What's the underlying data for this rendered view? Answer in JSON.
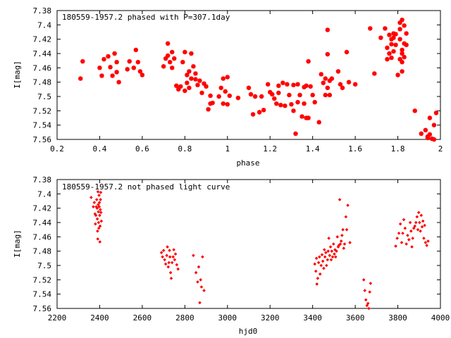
{
  "chart_data": [
    {
      "type": "scatter",
      "title": "180559-1957.2 phased with P=307.1day",
      "xlabel": "phase",
      "ylabel": "I[mag]",
      "xlim": [
        0.2,
        2.0
      ],
      "ylim": [
        7.38,
        7.56
      ],
      "y_inverted": true,
      "grid": false,
      "marker": "asterisk",
      "color": "#ff0000",
      "xticks": [
        "0.2",
        "0.4",
        "0.6",
        "0.8",
        "1",
        "1.2",
        "1.4",
        "1.6",
        "1.8",
        "2"
      ],
      "yticks": [
        "7.38",
        "7.4",
        "7.42",
        "7.44",
        "7.46",
        "7.48",
        "7.5",
        "7.52",
        "7.54",
        "7.56"
      ],
      "points": [
        [
          0.31,
          7.475
        ],
        [
          0.32,
          7.451
        ],
        [
          0.4,
          7.46
        ],
        [
          0.41,
          7.471
        ],
        [
          0.42,
          7.448
        ],
        [
          0.44,
          7.444
        ],
        [
          0.45,
          7.459
        ],
        [
          0.46,
          7.471
        ],
        [
          0.47,
          7.44
        ],
        [
          0.48,
          7.452
        ],
        [
          0.48,
          7.466
        ],
        [
          0.49,
          7.48
        ],
        [
          0.53,
          7.462
        ],
        [
          0.54,
          7.451
        ],
        [
          0.56,
          7.46
        ],
        [
          0.57,
          7.435
        ],
        [
          0.58,
          7.452
        ],
        [
          0.59,
          7.465
        ],
        [
          0.6,
          7.47
        ],
        [
          0.7,
          7.458
        ],
        [
          0.71,
          7.447
        ],
        [
          0.72,
          7.443
        ],
        [
          0.72,
          7.426
        ],
        [
          0.73,
          7.452
        ],
        [
          0.74,
          7.438
        ],
        [
          0.74,
          7.46
        ],
        [
          0.75,
          7.447
        ],
        [
          0.76,
          7.485
        ],
        [
          0.77,
          7.49
        ],
        [
          0.78,
          7.486
        ],
        [
          0.79,
          7.452
        ],
        [
          0.8,
          7.492
        ],
        [
          0.8,
          7.438
        ],
        [
          0.81,
          7.47
        ],
        [
          0.81,
          7.481
        ],
        [
          0.82,
          7.488
        ],
        [
          0.82,
          7.465
        ],
        [
          0.83,
          7.44
        ],
        [
          0.83,
          7.475
        ],
        [
          0.84,
          7.458
        ],
        [
          0.85,
          7.476
        ],
        [
          0.85,
          7.468
        ],
        [
          0.86,
          7.484
        ],
        [
          0.87,
          7.478
        ],
        [
          0.88,
          7.495
        ],
        [
          0.89,
          7.482
        ],
        [
          0.9,
          7.486
        ],
        [
          0.91,
          7.518
        ],
        [
          0.92,
          7.499
        ],
        [
          0.92,
          7.51
        ],
        [
          0.93,
          7.509
        ],
        [
          0.96,
          7.5
        ],
        [
          0.97,
          7.488
        ],
        [
          0.98,
          7.51
        ],
        [
          0.98,
          7.475
        ],
        [
          0.99,
          7.493
        ],
        [
          1.0,
          7.511
        ],
        [
          1.0,
          7.473
        ],
        [
          1.01,
          7.499
        ],
        [
          1.05,
          7.502
        ],
        [
          1.1,
          7.488
        ],
        [
          1.11,
          7.497
        ],
        [
          1.12,
          7.525
        ],
        [
          1.13,
          7.5
        ],
        [
          1.15,
          7.522
        ],
        [
          1.16,
          7.5
        ],
        [
          1.17,
          7.519
        ],
        [
          1.19,
          7.483
        ],
        [
          1.2,
          7.494
        ],
        [
          1.21,
          7.497
        ],
        [
          1.22,
          7.503
        ],
        [
          1.23,
          7.51
        ],
        [
          1.24,
          7.485
        ],
        [
          1.24,
          7.495
        ],
        [
          1.25,
          7.512
        ],
        [
          1.26,
          7.481
        ],
        [
          1.27,
          7.513
        ],
        [
          1.28,
          7.483
        ],
        [
          1.29,
          7.498
        ],
        [
          1.3,
          7.511
        ],
        [
          1.31,
          7.484
        ],
        [
          1.31,
          7.52
        ],
        [
          1.32,
          7.552
        ],
        [
          1.33,
          7.483
        ],
        [
          1.33,
          7.508
        ],
        [
          1.34,
          7.498
        ],
        [
          1.35,
          7.528
        ],
        [
          1.36,
          7.487
        ],
        [
          1.36,
          7.51
        ],
        [
          1.37,
          7.53
        ],
        [
          1.37,
          7.485
        ],
        [
          1.38,
          7.53
        ],
        [
          1.38,
          7.451
        ],
        [
          1.39,
          7.486
        ],
        [
          1.4,
          7.498
        ],
        [
          1.41,
          7.508
        ],
        [
          1.43,
          7.536
        ],
        [
          1.44,
          7.469
        ],
        [
          1.45,
          7.481
        ],
        [
          1.46,
          7.498
        ],
        [
          1.46,
          7.475
        ],
        [
          1.47,
          7.488
        ],
        [
          1.47,
          7.441
        ],
        [
          1.47,
          7.407
        ],
        [
          1.48,
          7.498
        ],
        [
          1.48,
          7.478
        ],
        [
          1.49,
          7.475
        ],
        [
          1.52,
          7.465
        ],
        [
          1.53,
          7.483
        ],
        [
          1.54,
          7.488
        ],
        [
          1.56,
          7.438
        ],
        [
          1.57,
          7.48
        ],
        [
          1.6,
          7.483
        ],
        [
          1.67,
          7.405
        ],
        [
          1.69,
          7.468
        ],
        [
          1.72,
          7.418
        ],
        [
          1.74,
          7.405
        ],
        [
          1.75,
          7.432
        ],
        [
          1.75,
          7.448
        ],
        [
          1.76,
          7.414
        ],
        [
          1.76,
          7.44
        ],
        [
          1.77,
          7.42
        ],
        [
          1.77,
          7.427
        ],
        [
          1.77,
          7.446
        ],
        [
          1.78,
          7.412
        ],
        [
          1.78,
          7.437
        ],
        [
          1.78,
          7.418
        ],
        [
          1.79,
          7.413
        ],
        [
          1.79,
          7.428
        ],
        [
          1.8,
          7.47
        ],
        [
          1.81,
          7.406
        ],
        [
          1.81,
          7.397
        ],
        [
          1.81,
          7.42
        ],
        [
          1.81,
          7.448
        ],
        [
          1.82,
          7.393
        ],
        [
          1.82,
          7.435
        ],
        [
          1.82,
          7.44
        ],
        [
          1.82,
          7.452
        ],
        [
          1.82,
          7.465
        ],
        [
          1.83,
          7.401
        ],
        [
          1.83,
          7.426
        ],
        [
          1.83,
          7.445
        ],
        [
          1.84,
          7.412
        ],
        [
          1.84,
          7.428
        ],
        [
          1.88,
          7.52
        ],
        [
          1.91,
          7.552
        ],
        [
          1.93,
          7.547
        ],
        [
          1.94,
          7.558
        ],
        [
          1.94,
          7.556
        ],
        [
          1.95,
          7.53
        ],
        [
          1.95,
          7.553
        ],
        [
          1.96,
          7.559
        ],
        [
          1.97,
          7.56
        ],
        [
          1.97,
          7.54
        ],
        [
          1.98,
          7.523
        ]
      ]
    },
    {
      "type": "scatter",
      "title": "180559-1957.2 not phased light curve",
      "xlabel": "hjd0",
      "ylabel": "I[mag]",
      "xlim": [
        2200,
        4000
      ],
      "ylim": [
        7.38,
        7.56
      ],
      "y_inverted": true,
      "grid": false,
      "marker": "diamond",
      "color": "#ff0000",
      "xticks": [
        "2200",
        "2400",
        "2600",
        "2800",
        "3000",
        "3200",
        "3400",
        "3600",
        "3800",
        "4000"
      ],
      "yticks": [
        "7.38",
        "7.4",
        "7.42",
        "7.44",
        "7.46",
        "7.48",
        "7.5",
        "7.52",
        "7.54",
        "7.56"
      ],
      "points": [
        [
          2360,
          7.405
        ],
        [
          2370,
          7.418
        ],
        [
          2375,
          7.412
        ],
        [
          2378,
          7.428
        ],
        [
          2380,
          7.442
        ],
        [
          2382,
          7.43
        ],
        [
          2384,
          7.418
        ],
        [
          2386,
          7.408
        ],
        [
          2388,
          7.42
        ],
        [
          2389,
          7.435
        ],
        [
          2390,
          7.452
        ],
        [
          2391,
          7.463
        ],
        [
          2392,
          7.397
        ],
        [
          2393,
          7.415
        ],
        [
          2394,
          7.425
        ],
        [
          2395,
          7.44
        ],
        [
          2396,
          7.448
        ],
        [
          2397,
          7.402
        ],
        [
          2398,
          7.418
        ],
        [
          2399,
          7.412
        ],
        [
          2400,
          7.43
        ],
        [
          2401,
          7.467
        ],
        [
          2402,
          7.445
        ],
        [
          2403,
          7.422
        ],
        [
          2404,
          7.408
        ],
        [
          2405,
          7.398
        ],
        [
          2406,
          7.426
        ],
        [
          2408,
          7.438
        ],
        [
          2690,
          7.482
        ],
        [
          2695,
          7.488
        ],
        [
          2700,
          7.479
        ],
        [
          2705,
          7.492
        ],
        [
          2710,
          7.498
        ],
        [
          2715,
          7.486
        ],
        [
          2718,
          7.474
        ],
        [
          2722,
          7.502
        ],
        [
          2725,
          7.496
        ],
        [
          2728,
          7.479
        ],
        [
          2730,
          7.488
        ],
        [
          2733,
          7.51
        ],
        [
          2736,
          7.518
        ],
        [
          2740,
          7.496
        ],
        [
          2745,
          7.488
        ],
        [
          2748,
          7.478
        ],
        [
          2752,
          7.492
        ],
        [
          2756,
          7.484
        ],
        [
          2762,
          7.499
        ],
        [
          2768,
          7.505
        ],
        [
          2840,
          7.486
        ],
        [
          2852,
          7.51
        ],
        [
          2860,
          7.523
        ],
        [
          2865,
          7.502
        ],
        [
          2870,
          7.552
        ],
        [
          2874,
          7.52
        ],
        [
          2878,
          7.53
        ],
        [
          2883,
          7.488
        ],
        [
          2890,
          7.535
        ],
        [
          3410,
          7.498
        ],
        [
          3415,
          7.508
        ],
        [
          3418,
          7.49
        ],
        [
          3420,
          7.526
        ],
        [
          3424,
          7.518
        ],
        [
          3428,
          7.496
        ],
        [
          3432,
          7.488
        ],
        [
          3435,
          7.512
        ],
        [
          3440,
          7.5
        ],
        [
          3444,
          7.485
        ],
        [
          3448,
          7.494
        ],
        [
          3452,
          7.504
        ],
        [
          3455,
          7.478
        ],
        [
          3458,
          7.488
        ],
        [
          3462,
          7.482
        ],
        [
          3465,
          7.5
        ],
        [
          3470,
          7.492
        ],
        [
          3473,
          7.48
        ],
        [
          3476,
          7.462
        ],
        [
          3480,
          7.486
        ],
        [
          3484,
          7.474
        ],
        [
          3487,
          7.492
        ],
        [
          3490,
          7.48
        ],
        [
          3494,
          7.488
        ],
        [
          3498,
          7.47
        ],
        [
          3502,
          7.484
        ],
        [
          3505,
          7.478
        ],
        [
          3508,
          7.488
        ],
        [
          3512,
          7.48
        ],
        [
          3516,
          7.46
        ],
        [
          3520,
          7.474
        ],
        [
          3523,
          7.472
        ],
        [
          3527,
          7.408
        ],
        [
          3530,
          7.47
        ],
        [
          3534,
          7.466
        ],
        [
          3538,
          7.458
        ],
        [
          3542,
          7.45
        ],
        [
          3546,
          7.476
        ],
        [
          3550,
          7.47
        ],
        [
          3556,
          7.432
        ],
        [
          3560,
          7.45
        ],
        [
          3565,
          7.416
        ],
        [
          3575,
          7.468
        ],
        [
          3640,
          7.52
        ],
        [
          3645,
          7.535
        ],
        [
          3650,
          7.548
        ],
        [
          3655,
          7.556
        ],
        [
          3660,
          7.553
        ],
        [
          3664,
          7.56
        ],
        [
          3668,
          7.537
        ],
        [
          3672,
          7.525
        ],
        [
          3790,
          7.473
        ],
        [
          3797,
          7.462
        ],
        [
          3805,
          7.455
        ],
        [
          3812,
          7.442
        ],
        [
          3818,
          7.468
        ],
        [
          3823,
          7.455
        ],
        [
          3828,
          7.436
        ],
        [
          3834,
          7.448
        ],
        [
          3840,
          7.47
        ],
        [
          3846,
          7.458
        ],
        [
          3852,
          7.464
        ],
        [
          3858,
          7.44
        ],
        [
          3862,
          7.452
        ],
        [
          3866,
          7.474
        ],
        [
          3870,
          7.462
        ],
        [
          3875,
          7.448
        ],
        [
          3880,
          7.445
        ],
        [
          3885,
          7.44
        ],
        [
          3890,
          7.432
        ],
        [
          3894,
          7.45
        ],
        [
          3898,
          7.426
        ],
        [
          3902,
          7.44
        ],
        [
          3906,
          7.452
        ],
        [
          3910,
          7.43
        ],
        [
          3914,
          7.446
        ],
        [
          3918,
          7.438
        ],
        [
          3922,
          7.462
        ],
        [
          3926,
          7.444
        ],
        [
          3930,
          7.468
        ],
        [
          3936,
          7.472
        ],
        [
          3942,
          7.466
        ]
      ]
    }
  ]
}
